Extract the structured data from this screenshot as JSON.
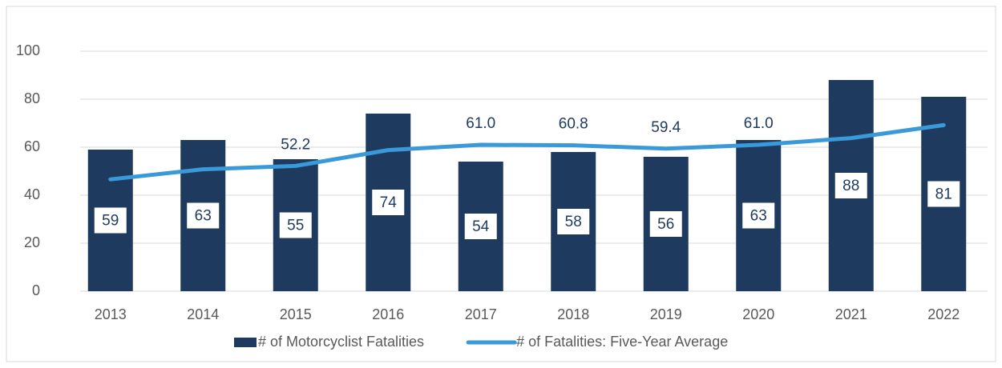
{
  "chart_data": {
    "type": "bar-line",
    "categories": [
      "2013",
      "2014",
      "2015",
      "2016",
      "2017",
      "2018",
      "2019",
      "2020",
      "2021",
      "2022"
    ],
    "series": [
      {
        "name": "# of Motorcyclist Fatalities",
        "type": "bar",
        "color": "#1f3a5f",
        "values": [
          59,
          63,
          55,
          74,
          54,
          58,
          56,
          63,
          88,
          81
        ]
      },
      {
        "name": "# of Fatalities: Five-Year Average",
        "type": "line",
        "color": "#3a9ad9",
        "values": [
          46.6,
          50.8,
          52.2,
          58.8,
          61.0,
          60.8,
          59.4,
          61.0,
          63.8,
          69.2
        ],
        "value_labels": [
          "46.6",
          "50.8",
          "52.2",
          "58.8",
          "61.0",
          "60.8",
          "59.4",
          "61.0",
          "63.8",
          "69.2"
        ]
      }
    ],
    "ylim": [
      0,
      100
    ],
    "yticks": [
      0,
      20,
      40,
      60,
      80,
      100
    ],
    "grid": true,
    "legend": "bottom"
  }
}
